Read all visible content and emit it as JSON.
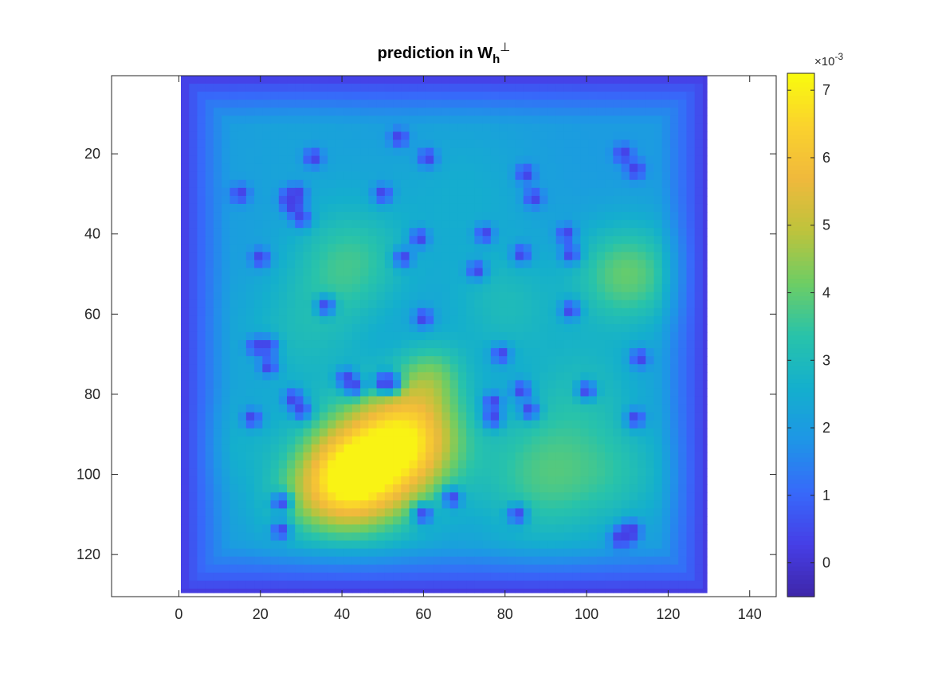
{
  "chart_data": {
    "type": "heatmap",
    "title": "prediction in W",
    "title_subscript": "h",
    "title_superscript": "⊥",
    "x_ticks": [
      "0",
      "20",
      "40",
      "60",
      "80",
      "100",
      "120",
      "140"
    ],
    "x_tick_values": [
      0,
      20,
      40,
      60,
      80,
      100,
      120,
      140
    ],
    "y_ticks": [
      "20",
      "40",
      "60",
      "80",
      "100",
      "120"
    ],
    "y_tick_values": [
      20,
      40,
      60,
      80,
      100,
      120
    ],
    "xlim": [
      -16.5,
      146.5
    ],
    "ylim": [
      130.5,
      0.5
    ],
    "y_direction": "reversed",
    "image_extent": {
      "x": [
        1,
        129
      ],
      "y": [
        1,
        129
      ]
    },
    "grid": false,
    "colormap": "parula",
    "colorbar": {
      "ticks": [
        "0",
        "1",
        "2",
        "3",
        "4",
        "5",
        "6",
        "7"
      ],
      "tick_values": [
        0,
        1,
        2,
        3,
        4,
        5,
        6,
        7
      ],
      "exponent_label": "×10",
      "exponent": "-3",
      "range": [
        -0.5,
        7.25
      ]
    },
    "hotspots": [
      {
        "x": 47,
        "y": 98,
        "value": 6.7,
        "spread": 11
      },
      {
        "x": 57,
        "y": 90,
        "value": 6.3,
        "spread": 9
      },
      {
        "x": 40,
        "y": 102,
        "value": 5.6,
        "spread": 8
      },
      {
        "x": 110,
        "y": 50,
        "value": 4.7,
        "spread": 9
      },
      {
        "x": 90,
        "y": 100,
        "value": 4.3,
        "spread": 12
      },
      {
        "x": 42,
        "y": 47,
        "value": 4.0,
        "spread": 10
      },
      {
        "x": 80,
        "y": 58,
        "value": 3.3,
        "spread": 10
      },
      {
        "x": 30,
        "y": 65,
        "value": 3.2,
        "spread": 11
      },
      {
        "x": 28,
        "y": 108,
        "value": 3.1,
        "spread": 8
      },
      {
        "x": 100,
        "y": 78,
        "value": 3.1,
        "spread": 10
      },
      {
        "x": 70,
        "y": 30,
        "value": 2.7,
        "spread": 13
      },
      {
        "x": 30,
        "y": 20,
        "value": 2.3,
        "spread": 14
      },
      {
        "x": 62,
        "y": 75,
        "value": 4.0,
        "spread": 6
      },
      {
        "x": 110,
        "y": 100,
        "value": 3.0,
        "spread": 9
      },
      {
        "x": 15,
        "y": 92,
        "value": 2.7,
        "spread": 8
      }
    ],
    "background_value": 2.0,
    "sinks": [
      {
        "x": 15,
        "y": 30
      },
      {
        "x": 27,
        "y": 31
      },
      {
        "x": 29,
        "y": 30
      },
      {
        "x": 28,
        "y": 33
      },
      {
        "x": 30,
        "y": 36
      },
      {
        "x": 33,
        "y": 21
      },
      {
        "x": 20,
        "y": 46
      },
      {
        "x": 36,
        "y": 58
      },
      {
        "x": 19,
        "y": 68
      },
      {
        "x": 22,
        "y": 68
      },
      {
        "x": 22,
        "y": 73
      },
      {
        "x": 28,
        "y": 81
      },
      {
        "x": 30,
        "y": 84
      },
      {
        "x": 18,
        "y": 86
      },
      {
        "x": 41,
        "y": 76
      },
      {
        "x": 43,
        "y": 78
      },
      {
        "x": 50,
        "y": 77
      },
      {
        "x": 52,
        "y": 77
      },
      {
        "x": 50,
        "y": 30
      },
      {
        "x": 54,
        "y": 16
      },
      {
        "x": 61,
        "y": 21
      },
      {
        "x": 59,
        "y": 41
      },
      {
        "x": 55,
        "y": 46
      },
      {
        "x": 60,
        "y": 61
      },
      {
        "x": 73,
        "y": 49
      },
      {
        "x": 75,
        "y": 40
      },
      {
        "x": 85,
        "y": 25
      },
      {
        "x": 87,
        "y": 31
      },
      {
        "x": 84,
        "y": 45
      },
      {
        "x": 95,
        "y": 40
      },
      {
        "x": 96,
        "y": 45
      },
      {
        "x": 96,
        "y": 59
      },
      {
        "x": 79,
        "y": 70
      },
      {
        "x": 77,
        "y": 82
      },
      {
        "x": 77,
        "y": 86
      },
      {
        "x": 84,
        "y": 79
      },
      {
        "x": 86,
        "y": 84
      },
      {
        "x": 100,
        "y": 79
      },
      {
        "x": 109,
        "y": 20
      },
      {
        "x": 112,
        "y": 24
      },
      {
        "x": 113,
        "y": 71
      },
      {
        "x": 112,
        "y": 86
      },
      {
        "x": 25,
        "y": 107
      },
      {
        "x": 25,
        "y": 114
      },
      {
        "x": 60,
        "y": 110
      },
      {
        "x": 67,
        "y": 106
      },
      {
        "x": 83,
        "y": 110
      },
      {
        "x": 108,
        "y": 116
      },
      {
        "x": 110,
        "y": 115
      },
      {
        "x": 111,
        "y": 114
      }
    ]
  }
}
